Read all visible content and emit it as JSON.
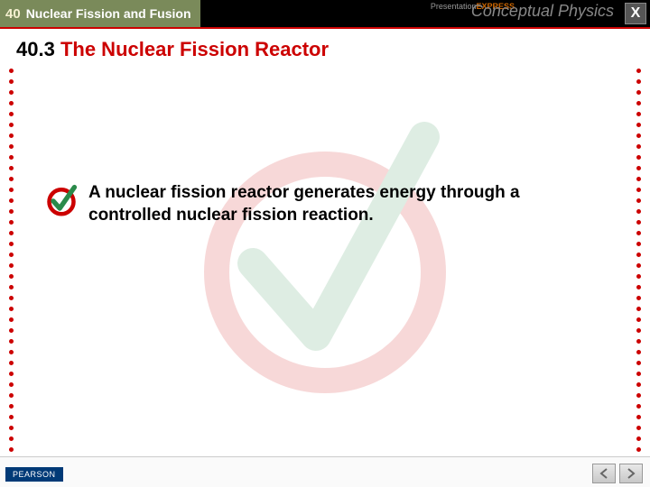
{
  "header": {
    "chapter_num": "40",
    "chapter_title": "Nuclear Fission and Fusion",
    "brand_small": "Presentation",
    "brand_small2": "EXPRESS",
    "brand_main": "Conceptual Physics",
    "close_label": "X",
    "section_bg": "#7a8a5a",
    "header_bg": "#000000",
    "accent": "#cc0000"
  },
  "slide": {
    "title_num": "40.3",
    "title_text": "The Nuclear Fission Reactor",
    "body": "A nuclear fission reactor generates energy through a controlled nuclear fission reaction."
  },
  "watermark": {
    "outer_color": "#cc0000",
    "inner_color": "#2a8a4a",
    "stroke_width": 28
  },
  "bullet_icon": {
    "ring_color": "#cc0000",
    "check_color": "#2a8a4a",
    "bg": "#ffffff"
  },
  "footer": {
    "publisher": "PEARSON"
  },
  "nav": {
    "prev_color": "#666666",
    "next_color": "#666666"
  }
}
